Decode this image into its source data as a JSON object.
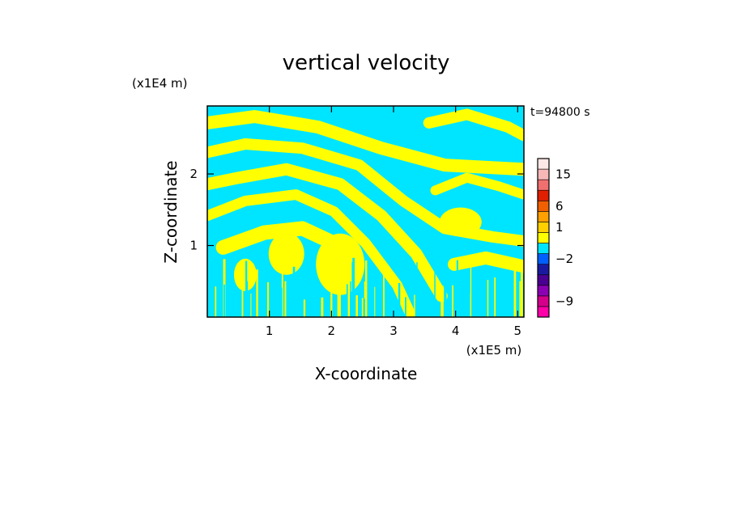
{
  "chart_data": {
    "type": "heatmap",
    "title": "vertical velocity",
    "time_label": "t=94800 s",
    "xlabel": "X-coordinate",
    "ylabel": "Z-coordinate",
    "x_unit": "(x1E5 m)",
    "y_unit": "(x1E4 m)",
    "xlim": [
      0,
      5.1
    ],
    "ylim": [
      0,
      2.95
    ],
    "x_ticks": [
      1,
      2,
      3,
      4,
      5
    ],
    "y_ticks": [
      1,
      2
    ],
    "field_description": "banded positive/negative vertical velocity pattern",
    "field_colors": {
      "positive": "#ffff00",
      "negative": "#00e5ff"
    },
    "colorbar": {
      "levels": [
        {
          "color": "#ff00a8"
        },
        {
          "color": "#d4008c"
        },
        {
          "color": "#8c00b4"
        },
        {
          "color": "#4a0090"
        },
        {
          "color": "#1a1aa0"
        },
        {
          "color": "#0060ff"
        },
        {
          "color": "#00e5ff"
        },
        {
          "color": "#ffff00"
        },
        {
          "color": "#ffd000"
        },
        {
          "color": "#ffa000"
        },
        {
          "color": "#f06000"
        },
        {
          "color": "#e02000"
        },
        {
          "color": "#f07070"
        },
        {
          "color": "#f8b8b8"
        },
        {
          "color": "#fde8e8"
        }
      ],
      "tick_labels": [
        {
          "label": "15",
          "level": 13
        },
        {
          "label": "6",
          "level": 10
        },
        {
          "label": "1",
          "level": 8
        },
        {
          "label": "−2",
          "level": 5
        },
        {
          "label": "−9",
          "level": 1
        }
      ]
    }
  }
}
